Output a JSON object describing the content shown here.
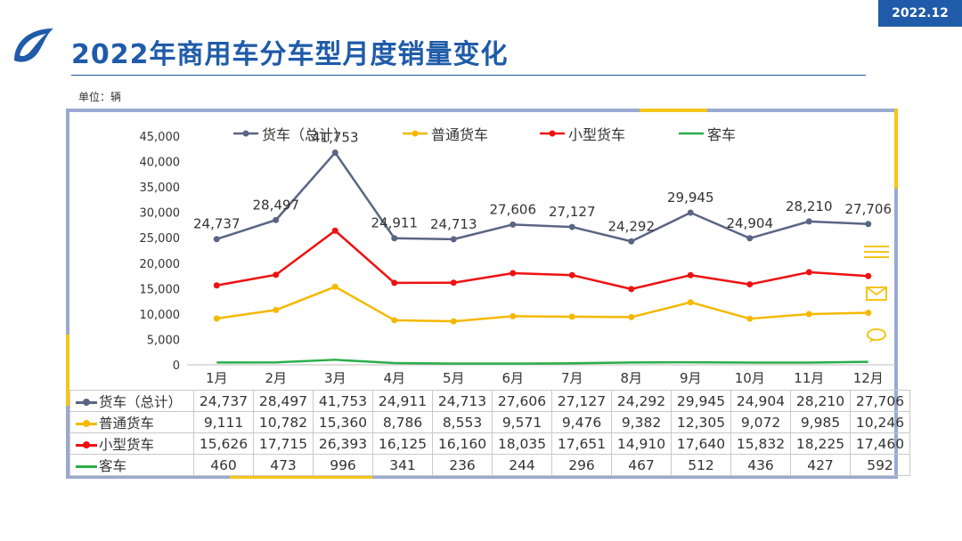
{
  "header": {
    "date_badge": "2022.12",
    "title": "2022年商用车分车型月度销量变化",
    "unit": "单位：辆"
  },
  "colors": {
    "brand": "#1f5ba8",
    "series": [
      "#5a6585",
      "#f5b800",
      "#ee1111",
      "#2aae4a"
    ]
  },
  "chart_data": {
    "type": "line",
    "categories": [
      "1月",
      "2月",
      "3月",
      "4月",
      "5月",
      "6月",
      "7月",
      "8月",
      "9月",
      "10月",
      "11月",
      "12月"
    ],
    "series": [
      {
        "name": "货车（总计）",
        "values": [
          24737,
          28497,
          41753,
          24911,
          24713,
          27606,
          27127,
          24292,
          29945,
          24904,
          28210,
          27706
        ],
        "labels": [
          "24,737",
          "28,497",
          "41,753",
          "24,911",
          "24,713",
          "27,606",
          "27,127",
          "24,292",
          "29,945",
          "24,904",
          "28,210",
          "27,706"
        ],
        "marker": true
      },
      {
        "name": "普通货车",
        "values": [
          9111,
          10782,
          15360,
          8786,
          8553,
          9571,
          9476,
          9382,
          12305,
          9072,
          9985,
          10246
        ],
        "labels": [
          "9,111",
          "10,782",
          "15,360",
          "8,786",
          "8,553",
          "9,571",
          "9,476",
          "9,382",
          "12,305",
          "9,072",
          "9,985",
          "10,246"
        ],
        "marker": true
      },
      {
        "name": "小型货车",
        "values": [
          15626,
          17715,
          26393,
          16125,
          16160,
          18035,
          17651,
          14910,
          17640,
          15832,
          18225,
          17460
        ],
        "labels": [
          "15,626",
          "17,715",
          "26,393",
          "16,125",
          "16,160",
          "18,035",
          "17,651",
          "14,910",
          "17,640",
          "15,832",
          "18,225",
          "17,460"
        ],
        "marker": true
      },
      {
        "name": "客车",
        "values": [
          460,
          473,
          996,
          341,
          236,
          244,
          296,
          467,
          512,
          436,
          427,
          592
        ],
        "labels": [
          "460",
          "473",
          "996",
          "341",
          "236",
          "244",
          "296",
          "467",
          "512",
          "436",
          "427",
          "592"
        ],
        "marker": false
      }
    ],
    "ylim": [
      0,
      45000
    ],
    "yticks": [
      0,
      5000,
      10000,
      15000,
      20000,
      25000,
      30000,
      35000,
      40000,
      45000
    ],
    "ytick_labels": [
      "0",
      "5,000",
      "10,000",
      "15,000",
      "20,000",
      "25,000",
      "30,000",
      "35,000",
      "40,000",
      "45,000"
    ],
    "grid": false,
    "legend_position": "top"
  }
}
